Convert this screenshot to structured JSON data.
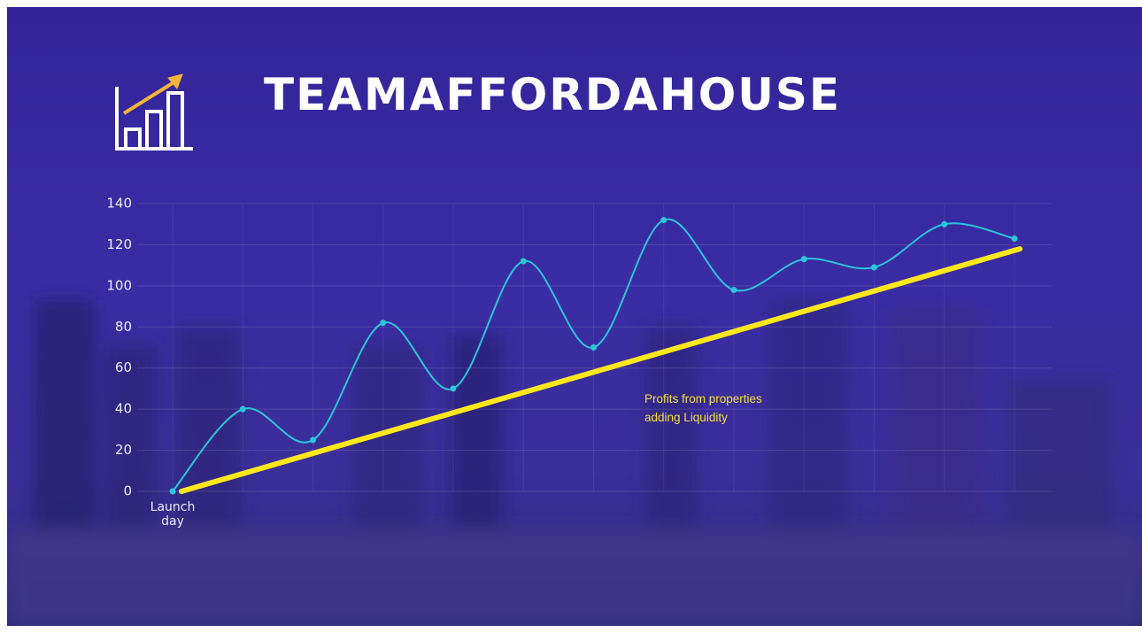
{
  "chart_data": {
    "type": "line",
    "title": "TEAMAFFORDAHOUSE",
    "categories": [
      "Launch day",
      null,
      null,
      null,
      null,
      null,
      null,
      null,
      null,
      null,
      null,
      null,
      null
    ],
    "values": [
      0,
      40,
      25,
      82,
      50,
      112,
      70,
      132,
      98,
      113,
      109,
      130,
      123
    ],
    "color": "#2cc6d8",
    "smooth": true,
    "markers": true,
    "trend_line": {
      "values": [
        0,
        118
      ],
      "color": "#ffe81a"
    },
    "annotation": "Profits from properties adding Liquidity",
    "ylim": [
      0,
      140
    ],
    "yticks": [
      0,
      20,
      40,
      60,
      80,
      100,
      120,
      140
    ],
    "grid": true
  }
}
